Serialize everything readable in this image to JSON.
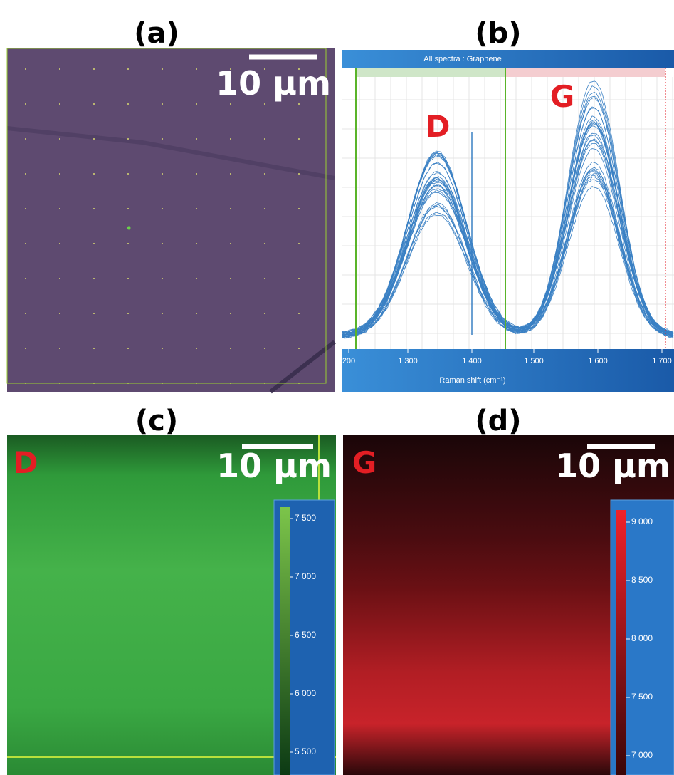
{
  "panels": [
    {
      "label": "(a)",
      "scale_bar": "10 µm"
    },
    {
      "label": "(b)",
      "title": "All spectra : Graphene",
      "peaks": [
        "D",
        "G"
      ],
      "x_ticks": [
        "200",
        "1 300",
        "1 400",
        "1 500",
        "1 600",
        "1 700"
      ],
      "x_axis_label": "Raman shift (cm⁻¹)"
    },
    {
      "label": "(c)",
      "map_label": "D",
      "scale_bar": "10 µm",
      "colorbar_ticks": [
        "7 500",
        "7 000",
        "6 500",
        "6 000",
        "5 500"
      ]
    },
    {
      "label": "(d)",
      "map_label": "G",
      "scale_bar": "10 µm",
      "colorbar_ticks": [
        "9 000",
        "8 500",
        "8 000",
        "7 500",
        "7 000"
      ]
    }
  ]
}
